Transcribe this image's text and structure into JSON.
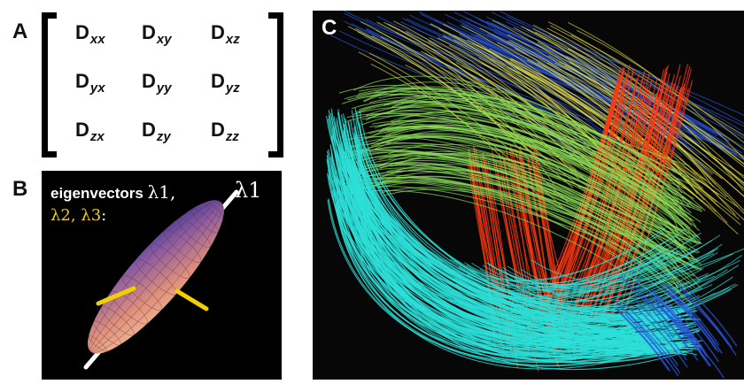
{
  "panels": {
    "a": {
      "label": "A",
      "matrix": [
        [
          {
            "d": "D",
            "sub": "xx"
          },
          {
            "d": "D",
            "sub": "xy"
          },
          {
            "d": "D",
            "sub": "xz"
          }
        ],
        [
          {
            "d": "D",
            "sub": "yx"
          },
          {
            "d": "D",
            "sub": "yy"
          },
          {
            "d": "D",
            "sub": "yz"
          }
        ],
        [
          {
            "d": "D",
            "sub": "zx"
          },
          {
            "d": "D",
            "sub": "zy"
          },
          {
            "d": "D",
            "sub": "zz"
          }
        ]
      ]
    },
    "b": {
      "label": "B",
      "title_text": "eigenvectors ",
      "title_lambda": "λ1,",
      "axis_lambda": "λ1",
      "sub_text": "λ2, λ3",
      "sub_colon": ":"
    },
    "c": {
      "label": "C"
    }
  },
  "colors": {
    "background": "#ffffff",
    "panel_dark": "#000000",
    "eigenvector_secondary": "#f1d000",
    "eigenvector_primary": "#ffffff",
    "ellipsoid_warm": "#e8a070",
    "ellipsoid_cool": "#3a3aa0",
    "fiber_cyan": "#2de0d8",
    "fiber_green": "#8ce05a",
    "fiber_red": "#ff3a10",
    "fiber_blue": "#2a55e0",
    "fiber_yellow": "#e8e040"
  }
}
